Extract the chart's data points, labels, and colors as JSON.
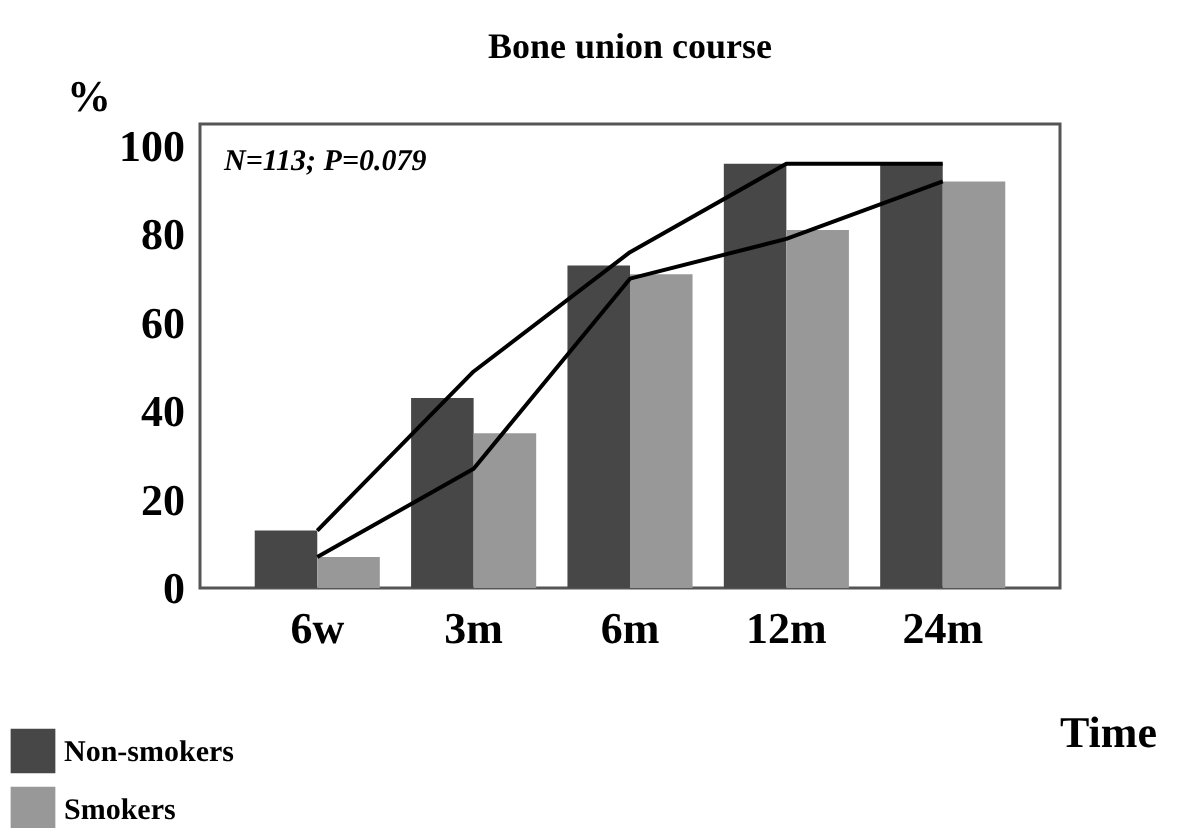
{
  "chart_data": {
    "type": "bar",
    "title": "Bone union course",
    "xlabel": "Time",
    "ylabel": "%",
    "categories": [
      "6w",
      "3m",
      "6m",
      "12m",
      "24m"
    ],
    "series": [
      {
        "name": "Non-smokers",
        "color": "#474747",
        "values": [
          13,
          43,
          73,
          96,
          96
        ]
      },
      {
        "name": "Smokers",
        "color": "#989898",
        "values": [
          7,
          35,
          71,
          81,
          92
        ]
      },
      {
        "type": "line",
        "color": "#000000",
        "values": [
          13,
          49,
          76,
          96,
          96
        ]
      },
      {
        "type": "line",
        "color": "#000000",
        "values": [
          7,
          27,
          70,
          79,
          92
        ]
      }
    ],
    "annotations": [
      "N=113; P=0.079"
    ],
    "ylim": [
      0,
      105
    ],
    "yticks": [
      0,
      20,
      40,
      60,
      80,
      100
    ],
    "grid": false,
    "legend": "bottom left"
  }
}
